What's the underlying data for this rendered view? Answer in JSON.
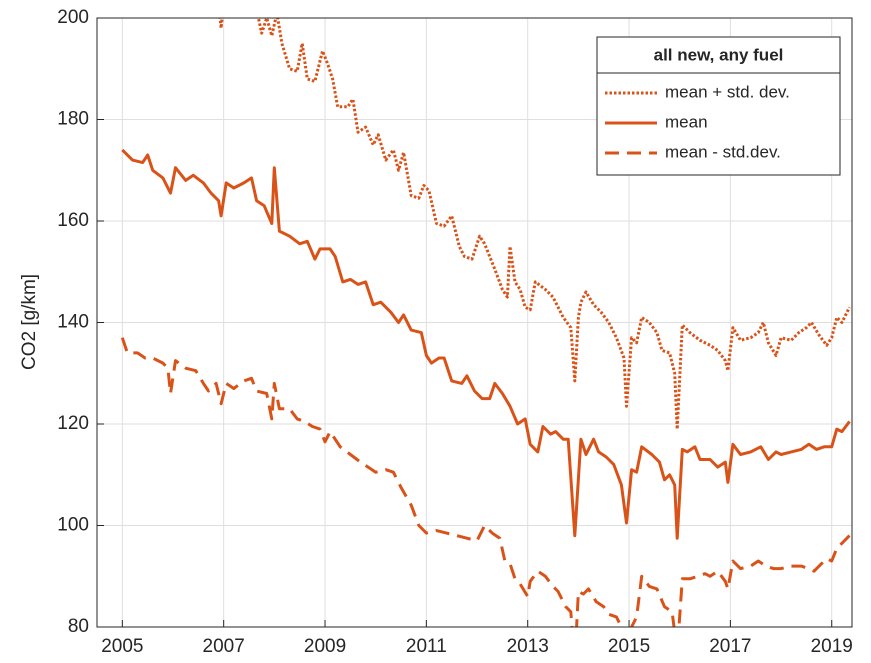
{
  "chart_data": {
    "type": "line",
    "y_label": "CO2 [g/km]",
    "xlim": [
      2004.5,
      2019.4
    ],
    "xticks": [
      2005,
      2007,
      2009,
      2011,
      2013,
      2015,
      2017,
      2019
    ],
    "ylim": [
      80,
      200
    ],
    "yticks": [
      80,
      100,
      120,
      140,
      160,
      180,
      200
    ],
    "grid": true,
    "legend_title": "all new, any fuel",
    "legend_position": "upper right",
    "series": [
      {
        "name": "mean + std. dev.",
        "color": "#d95319",
        "style": "dotted",
        "x": [
          2006.9,
          2006.95,
          2007.0,
          2007.6,
          2007.75,
          2007.85,
          2007.95,
          2008.05,
          2008.15,
          2008.3,
          2008.45,
          2008.55,
          2008.65,
          2008.8,
          2008.95,
          2009.05,
          2009.15,
          2009.25,
          2009.45,
          2009.55,
          2009.65,
          2009.8,
          2009.95,
          2010.05,
          2010.2,
          2010.35,
          2010.45,
          2010.55,
          2010.7,
          2010.85,
          2010.95,
          2011.05,
          2011.2,
          2011.35,
          2011.5,
          2011.65,
          2011.75,
          2011.9,
          2012.05,
          2012.15,
          2012.35,
          2012.5,
          2012.6,
          2012.65,
          2012.75,
          2012.85,
          2012.95,
          2013.05,
          2013.15,
          2013.35,
          2013.5,
          2013.7,
          2013.85,
          2013.93,
          2014.0,
          2014.05,
          2014.15,
          2014.3,
          2014.45,
          2014.6,
          2014.75,
          2014.9,
          2014.95,
          2015.05,
          2015.15,
          2015.25,
          2015.4,
          2015.55,
          2015.65,
          2015.8,
          2015.9,
          2015.95,
          2016.05,
          2016.2,
          2016.4,
          2016.6,
          2016.75,
          2016.9,
          2016.95,
          2017.05,
          2017.2,
          2017.4,
          2017.55,
          2017.65,
          2017.75,
          2017.9,
          2018.0,
          2018.2,
          2018.35,
          2018.5,
          2018.6,
          2018.75,
          2018.9,
          2019.0,
          2019.1,
          2019.2,
          2019.35
        ],
        "values": [
          203,
          198,
          203,
          204,
          197,
          200,
          196.5,
          201,
          195,
          190,
          189.5,
          195,
          188,
          187.5,
          193.5,
          191,
          188,
          182.5,
          182.5,
          184,
          177.5,
          178.5,
          175,
          177,
          172,
          174,
          170,
          173.5,
          165,
          164.5,
          167,
          166,
          159.5,
          159,
          161,
          155,
          153,
          152.5,
          157,
          155.5,
          150.5,
          146.5,
          145,
          155,
          148,
          146.5,
          143,
          142.5,
          148,
          146.5,
          145,
          141,
          139,
          128.5,
          141,
          144,
          146,
          143.5,
          142,
          140,
          137,
          133,
          123.5,
          137,
          136,
          141,
          140,
          138,
          134.5,
          134,
          130,
          119,
          139.5,
          138,
          136.5,
          135.5,
          134.5,
          132.5,
          130.5,
          139,
          136.5,
          137,
          138,
          140,
          136,
          133.5,
          137,
          136.5,
          138,
          139,
          140,
          137.5,
          135.5,
          137,
          141,
          140,
          143
        ]
      },
      {
        "name": "mean",
        "color": "#d95319",
        "style": "solid",
        "x": [
          2005.0,
          2005.2,
          2005.4,
          2005.5,
          2005.6,
          2005.8,
          2005.95,
          2006.05,
          2006.25,
          2006.4,
          2006.6,
          2006.75,
          2006.9,
          2006.95,
          2007.05,
          2007.2,
          2007.4,
          2007.55,
          2007.65,
          2007.8,
          2007.95,
          2008.0,
          2008.1,
          2008.3,
          2008.5,
          2008.65,
          2008.8,
          2008.9,
          2009.1,
          2009.2,
          2009.35,
          2009.5,
          2009.65,
          2009.8,
          2009.95,
          2010.1,
          2010.3,
          2010.45,
          2010.55,
          2010.7,
          2010.9,
          2011.0,
          2011.1,
          2011.25,
          2011.35,
          2011.5,
          2011.7,
          2011.8,
          2011.95,
          2012.1,
          2012.25,
          2012.35,
          2012.5,
          2012.65,
          2012.8,
          2012.95,
          2013.05,
          2013.2,
          2013.3,
          2013.45,
          2013.55,
          2013.7,
          2013.8,
          2013.93,
          2014.05,
          2014.15,
          2014.3,
          2014.4,
          2014.55,
          2014.7,
          2014.85,
          2014.95,
          2015.05,
          2015.15,
          2015.25,
          2015.45,
          2015.6,
          2015.7,
          2015.8,
          2015.9,
          2015.95,
          2016.05,
          2016.15,
          2016.3,
          2016.4,
          2016.6,
          2016.75,
          2016.9,
          2016.95,
          2017.05,
          2017.2,
          2017.4,
          2017.6,
          2017.75,
          2017.9,
          2018.0,
          2018.2,
          2018.4,
          2018.55,
          2018.7,
          2018.85,
          2019.0,
          2019.1,
          2019.2,
          2019.35
        ],
        "values": [
          174,
          172,
          171.5,
          173,
          170,
          168.5,
          165.5,
          170.5,
          168,
          169,
          167.5,
          165.5,
          164,
          161,
          167.5,
          166.5,
          167.5,
          168.5,
          164,
          163,
          159.5,
          170.5,
          158,
          157,
          155.5,
          156,
          152.5,
          154.5,
          154.5,
          153,
          148,
          148.5,
          147.5,
          148,
          143.5,
          144,
          142,
          140,
          141.5,
          138.5,
          138,
          133.5,
          132,
          133,
          133,
          128.5,
          128,
          129.5,
          126.5,
          125,
          125,
          128,
          126,
          123.5,
          120,
          121,
          116,
          114.5,
          119.5,
          118,
          118.5,
          117,
          117,
          98,
          117,
          114,
          117,
          114.5,
          113.5,
          112,
          108,
          100.5,
          111,
          110.5,
          115.5,
          114,
          112.5,
          109,
          110,
          108,
          97.5,
          115,
          114.5,
          115.5,
          113,
          113,
          111.5,
          112.5,
          108.5,
          116,
          114,
          114.5,
          115.5,
          113,
          114.5,
          114,
          114.5,
          115,
          116,
          115,
          115.5,
          115.5,
          119,
          118.5,
          120.5
        ]
      },
      {
        "name": "mean - std.dev.",
        "color": "#d95319",
        "style": "dashed",
        "x": [
          2005.0,
          2005.1,
          2005.3,
          2005.45,
          2005.6,
          2005.8,
          2005.9,
          2005.95,
          2006.05,
          2006.25,
          2006.45,
          2006.6,
          2006.7,
          2006.85,
          2006.95,
          2007.05,
          2007.2,
          2007.4,
          2007.55,
          2007.65,
          2007.85,
          2007.95,
          2008.0,
          2008.1,
          2008.3,
          2008.45,
          2008.6,
          2008.75,
          2008.9,
          2009.0,
          2009.1,
          2009.3,
          2009.5,
          2009.7,
          2009.85,
          2010.0,
          2010.2,
          2010.35,
          2010.5,
          2010.7,
          2010.85,
          2011.0,
          2011.2,
          2011.4,
          2011.6,
          2011.8,
          2012.0,
          2012.15,
          2012.3,
          2012.45,
          2012.55,
          2012.65,
          2012.75,
          2012.85,
          2013.0,
          2013.05,
          2013.2,
          2013.35,
          2013.5,
          2013.6,
          2013.75,
          2013.85,
          2013.93,
          2014.0,
          2014.1,
          2014.2,
          2014.35,
          2014.5,
          2014.6,
          2014.75,
          2014.85,
          2014.95,
          2015.05,
          2015.15,
          2015.25,
          2015.4,
          2015.55,
          2015.7,
          2015.85,
          2015.95,
          2016.05,
          2016.2,
          2016.35,
          2016.5,
          2016.6,
          2016.75,
          2016.9,
          2016.95,
          2017.05,
          2017.2,
          2017.4,
          2017.55,
          2017.7,
          2017.85,
          2018.0,
          2018.2,
          2018.4,
          2018.55,
          2018.65,
          2018.8,
          2018.9,
          2019.0,
          2019.1,
          2019.2,
          2019.35
        ],
        "values": [
          137,
          134,
          134,
          133,
          133,
          132,
          131,
          126,
          132.5,
          131,
          130.5,
          128,
          126.5,
          128,
          124,
          128,
          127,
          128.5,
          129,
          126.5,
          126,
          121,
          128,
          123,
          123,
          121,
          120.5,
          119.5,
          119,
          116.5,
          118.5,
          115.5,
          114,
          112.5,
          111.5,
          110.5,
          111,
          110.5,
          107.5,
          104,
          100,
          98.5,
          99,
          98.5,
          98,
          97.5,
          97,
          100,
          98.5,
          97.5,
          93,
          92.5,
          89.5,
          88.5,
          86,
          89,
          91,
          90,
          88,
          87,
          84,
          83,
          73,
          87,
          86.5,
          87.5,
          85,
          84,
          82.5,
          82,
          80,
          75,
          80,
          82,
          90,
          88,
          87.5,
          84,
          83,
          75,
          89.5,
          89.5,
          90,
          90.5,
          90,
          91,
          89,
          87.5,
          93,
          91.5,
          92,
          93,
          92,
          91.5,
          91.5,
          92,
          92,
          91.5,
          91,
          92.5,
          93.5,
          93,
          95.5,
          96.5,
          98
        ]
      }
    ]
  }
}
